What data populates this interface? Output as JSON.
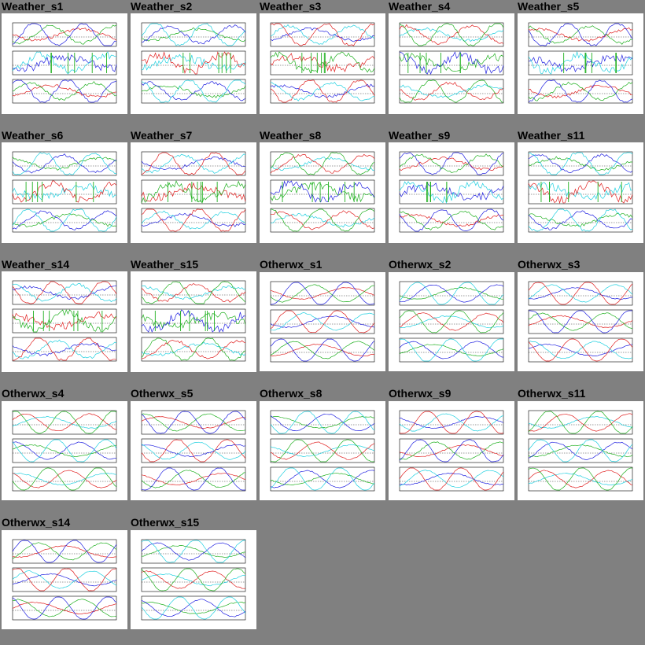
{
  "page": {
    "background": "#808080"
  },
  "tiles": [
    {
      "label": "Weather_s1",
      "kind": "weather",
      "panels": 3
    },
    {
      "label": "Weather_s2",
      "kind": "weather",
      "panels": 3
    },
    {
      "label": "Weather_s3",
      "kind": "weather",
      "panels": 3
    },
    {
      "label": "Weather_s4",
      "kind": "weather",
      "panels": 3
    },
    {
      "label": "Weather_s5",
      "kind": "weather",
      "panels": 3
    },
    {
      "label": "Weather_s6",
      "kind": "weather",
      "panels": 3
    },
    {
      "label": "Weather_s7",
      "kind": "weather",
      "panels": 3
    },
    {
      "label": "Weather_s8",
      "kind": "weather",
      "panels": 3
    },
    {
      "label": "Weather_s9",
      "kind": "weather",
      "panels": 3
    },
    {
      "label": "Weather_s11",
      "kind": "weather",
      "panels": 3
    },
    {
      "label": "Weather_s14",
      "kind": "weather",
      "panels": 3
    },
    {
      "label": "Weather_s15",
      "kind": "weather",
      "panels": 3
    },
    {
      "label": "Otherwx_s1",
      "kind": "other",
      "panels": 3
    },
    {
      "label": "Otherwx_s2",
      "kind": "other",
      "panels": 3
    },
    {
      "label": "Otherwx_s3",
      "kind": "other",
      "panels": 3
    },
    {
      "label": "Otherwx_s4",
      "kind": "other",
      "panels": 3
    },
    {
      "label": "Otherwx_s5",
      "kind": "other",
      "panels": 3
    },
    {
      "label": "Otherwx_s8",
      "kind": "other",
      "panels": 3
    },
    {
      "label": "Otherwx_s9",
      "kind": "other",
      "panels": 3
    },
    {
      "label": "Otherwx_s11",
      "kind": "other",
      "panels": 3
    },
    {
      "label": "Otherwx_s14",
      "kind": "other",
      "panels": 3
    },
    {
      "label": "Otherwx_s15",
      "kind": "other",
      "panels": 3
    }
  ],
  "colors": {
    "series": [
      "#e02020",
      "#20b020",
      "#2020e0",
      "#20d0e0",
      "#e020e0",
      "#e08020"
    ],
    "frame": "#000000"
  }
}
